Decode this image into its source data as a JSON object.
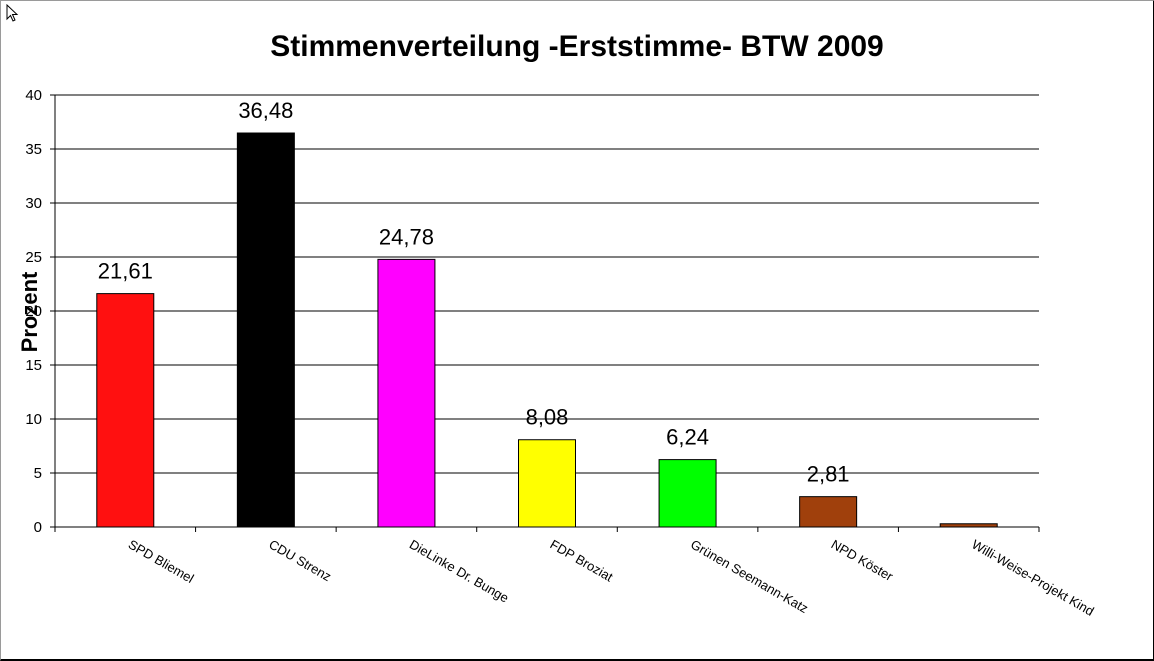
{
  "chart_data": {
    "type": "bar",
    "title": "Stimmenverteilung -Erststimme- BTW 2009",
    "xlabel": "",
    "ylabel": "Prozent",
    "ylim": [
      0,
      40
    ],
    "yticks": [
      0,
      5,
      10,
      15,
      20,
      25,
      30,
      35,
      40
    ],
    "grid": true,
    "categories": [
      "SPD Bliemel",
      "CDU Strenz",
      "DieLinke Dr. Bunge",
      "FDP Broziat",
      "Grünen Seemann-Katz",
      "NPD Köster",
      "Willi-Weise-Projekt Kind"
    ],
    "values": [
      21.61,
      36.48,
      24.78,
      8.08,
      6.24,
      2.81,
      0.3
    ],
    "data_labels": [
      "21,61",
      "36,48",
      "24,78",
      "8,08",
      "6,24",
      "2,81",
      ""
    ],
    "colors": [
      "#ff1010",
      "#000000",
      "#ff00ff",
      "#ffff00",
      "#00ff00",
      "#a0400c",
      "#a0400c"
    ]
  }
}
